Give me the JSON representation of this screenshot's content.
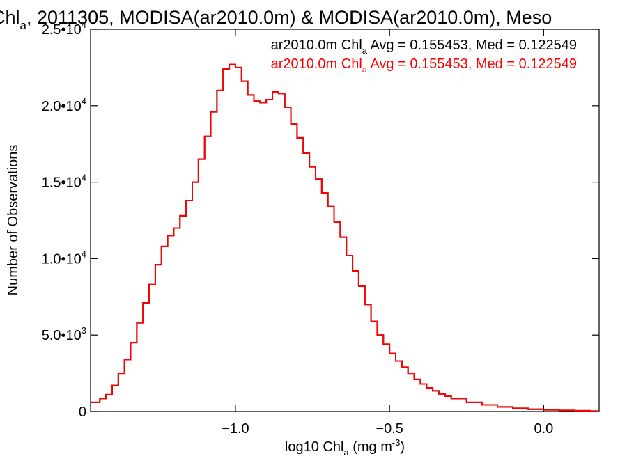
{
  "title": {
    "pre": "Chl",
    "sub": "a",
    "post": ", 2011305, MODISA(ar2010.0m) & MODISA(ar2010.0m), Meso"
  },
  "annotations": [
    {
      "pre": "ar2010.0m Chl",
      "sub": "a",
      "post": " Avg = 0.155453, Med = 0.122549",
      "color": "#000000"
    },
    {
      "pre": "ar2010.0m Chl",
      "sub": "a",
      "post": " Avg = 0.155453, Med = 0.122549",
      "color": "#ff0000"
    }
  ],
  "xlabel": {
    "pre": "log10 Chl",
    "sub": "a",
    "post": " (mg m",
    "sup": "-3",
    "end": ")"
  },
  "ylabel": "Number of Observations",
  "chart_data": {
    "type": "line",
    "xlim": [
      -1.47,
      0.18
    ],
    "ylim": [
      0,
      25000
    ],
    "x_ticks": [
      {
        "value": -1.0,
        "label": "−1.0"
      },
      {
        "value": -0.5,
        "label": "−0.5"
      },
      {
        "value": 0.0,
        "label": "0.0"
      }
    ],
    "y_ticks": [
      {
        "value": 0,
        "mant": "0",
        "exp": ""
      },
      {
        "value": 5000,
        "mant": "5.0•10",
        "exp": "3"
      },
      {
        "value": 10000,
        "mant": "1.0•10",
        "exp": "4"
      },
      {
        "value": 15000,
        "mant": "1.5•10",
        "exp": "4"
      },
      {
        "value": 20000,
        "mant": "2.0•10",
        "exp": "4"
      },
      {
        "value": 25000,
        "mant": "2.5•10",
        "exp": "4"
      }
    ],
    "series": [
      {
        "color": "#000000",
        "points": [
          [
            -1.47,
            600
          ],
          [
            -1.44,
            850
          ],
          [
            -1.42,
            1100
          ],
          [
            -1.4,
            1700
          ],
          [
            -1.38,
            2500
          ],
          [
            -1.36,
            3400
          ],
          [
            -1.34,
            4500
          ],
          [
            -1.32,
            5800
          ],
          [
            -1.3,
            7100
          ],
          [
            -1.28,
            8300
          ],
          [
            -1.26,
            9600
          ],
          [
            -1.24,
            10800
          ],
          [
            -1.22,
            11500
          ],
          [
            -1.2,
            12000
          ],
          [
            -1.18,
            12800
          ],
          [
            -1.16,
            13800
          ],
          [
            -1.14,
            15000
          ],
          [
            -1.12,
            16500
          ],
          [
            -1.1,
            18000
          ],
          [
            -1.08,
            19600
          ],
          [
            -1.06,
            21000
          ],
          [
            -1.04,
            22400
          ],
          [
            -1.02,
            22700
          ],
          [
            -1.0,
            22500
          ],
          [
            -0.98,
            21600
          ],
          [
            -0.96,
            20700
          ],
          [
            -0.94,
            20300
          ],
          [
            -0.92,
            20200
          ],
          [
            -0.9,
            20400
          ],
          [
            -0.88,
            20900
          ],
          [
            -0.86,
            20800
          ],
          [
            -0.84,
            19900
          ],
          [
            -0.82,
            18800
          ],
          [
            -0.8,
            17900
          ],
          [
            -0.78,
            16900
          ],
          [
            -0.76,
            16000
          ],
          [
            -0.74,
            15200
          ],
          [
            -0.72,
            14300
          ],
          [
            -0.7,
            13400
          ],
          [
            -0.68,
            12400
          ],
          [
            -0.66,
            11400
          ],
          [
            -0.64,
            10200
          ],
          [
            -0.62,
            9200
          ],
          [
            -0.6,
            8200
          ],
          [
            -0.58,
            7000
          ],
          [
            -0.56,
            5900
          ],
          [
            -0.54,
            5000
          ],
          [
            -0.52,
            4400
          ],
          [
            -0.5,
            3800
          ],
          [
            -0.48,
            3300
          ],
          [
            -0.46,
            2900
          ],
          [
            -0.44,
            2500
          ],
          [
            -0.42,
            2100
          ],
          [
            -0.4,
            1800
          ],
          [
            -0.38,
            1550
          ],
          [
            -0.36,
            1350
          ],
          [
            -0.34,
            1150
          ],
          [
            -0.32,
            1000
          ],
          [
            -0.3,
            850
          ],
          [
            -0.25,
            600
          ],
          [
            -0.2,
            430
          ],
          [
            -0.15,
            300
          ],
          [
            -0.1,
            210
          ],
          [
            -0.05,
            150
          ],
          [
            0.0,
            110
          ],
          [
            0.05,
            75
          ],
          [
            0.1,
            50
          ],
          [
            0.15,
            30
          ],
          [
            0.18,
            20
          ]
        ]
      },
      {
        "color": "#ff0000",
        "points": [
          [
            -1.47,
            600
          ],
          [
            -1.44,
            850
          ],
          [
            -1.42,
            1100
          ],
          [
            -1.4,
            1700
          ],
          [
            -1.38,
            2500
          ],
          [
            -1.36,
            3400
          ],
          [
            -1.34,
            4500
          ],
          [
            -1.32,
            5800
          ],
          [
            -1.3,
            7100
          ],
          [
            -1.28,
            8300
          ],
          [
            -1.26,
            9600
          ],
          [
            -1.24,
            10800
          ],
          [
            -1.22,
            11500
          ],
          [
            -1.2,
            12000
          ],
          [
            -1.18,
            12800
          ],
          [
            -1.16,
            13800
          ],
          [
            -1.14,
            15000
          ],
          [
            -1.12,
            16500
          ],
          [
            -1.1,
            18000
          ],
          [
            -1.08,
            19600
          ],
          [
            -1.06,
            21000
          ],
          [
            -1.04,
            22400
          ],
          [
            -1.02,
            22700
          ],
          [
            -1.0,
            22500
          ],
          [
            -0.98,
            21600
          ],
          [
            -0.96,
            20700
          ],
          [
            -0.94,
            20300
          ],
          [
            -0.92,
            20200
          ],
          [
            -0.9,
            20400
          ],
          [
            -0.88,
            20900
          ],
          [
            -0.86,
            20800
          ],
          [
            -0.84,
            19900
          ],
          [
            -0.82,
            18800
          ],
          [
            -0.8,
            17900
          ],
          [
            -0.78,
            16900
          ],
          [
            -0.76,
            16000
          ],
          [
            -0.74,
            15200
          ],
          [
            -0.72,
            14300
          ],
          [
            -0.7,
            13400
          ],
          [
            -0.68,
            12400
          ],
          [
            -0.66,
            11400
          ],
          [
            -0.64,
            10200
          ],
          [
            -0.62,
            9200
          ],
          [
            -0.6,
            8200
          ],
          [
            -0.58,
            7000
          ],
          [
            -0.56,
            5900
          ],
          [
            -0.54,
            5000
          ],
          [
            -0.52,
            4400
          ],
          [
            -0.5,
            3800
          ],
          [
            -0.48,
            3300
          ],
          [
            -0.46,
            2900
          ],
          [
            -0.44,
            2500
          ],
          [
            -0.42,
            2100
          ],
          [
            -0.4,
            1800
          ],
          [
            -0.38,
            1550
          ],
          [
            -0.36,
            1350
          ],
          [
            -0.34,
            1150
          ],
          [
            -0.32,
            1000
          ],
          [
            -0.3,
            850
          ],
          [
            -0.25,
            600
          ],
          [
            -0.2,
            430
          ],
          [
            -0.15,
            300
          ],
          [
            -0.1,
            210
          ],
          [
            -0.05,
            150
          ],
          [
            0.0,
            110
          ],
          [
            0.05,
            75
          ],
          [
            0.1,
            50
          ],
          [
            0.15,
            30
          ],
          [
            0.18,
            20
          ]
        ]
      }
    ]
  }
}
